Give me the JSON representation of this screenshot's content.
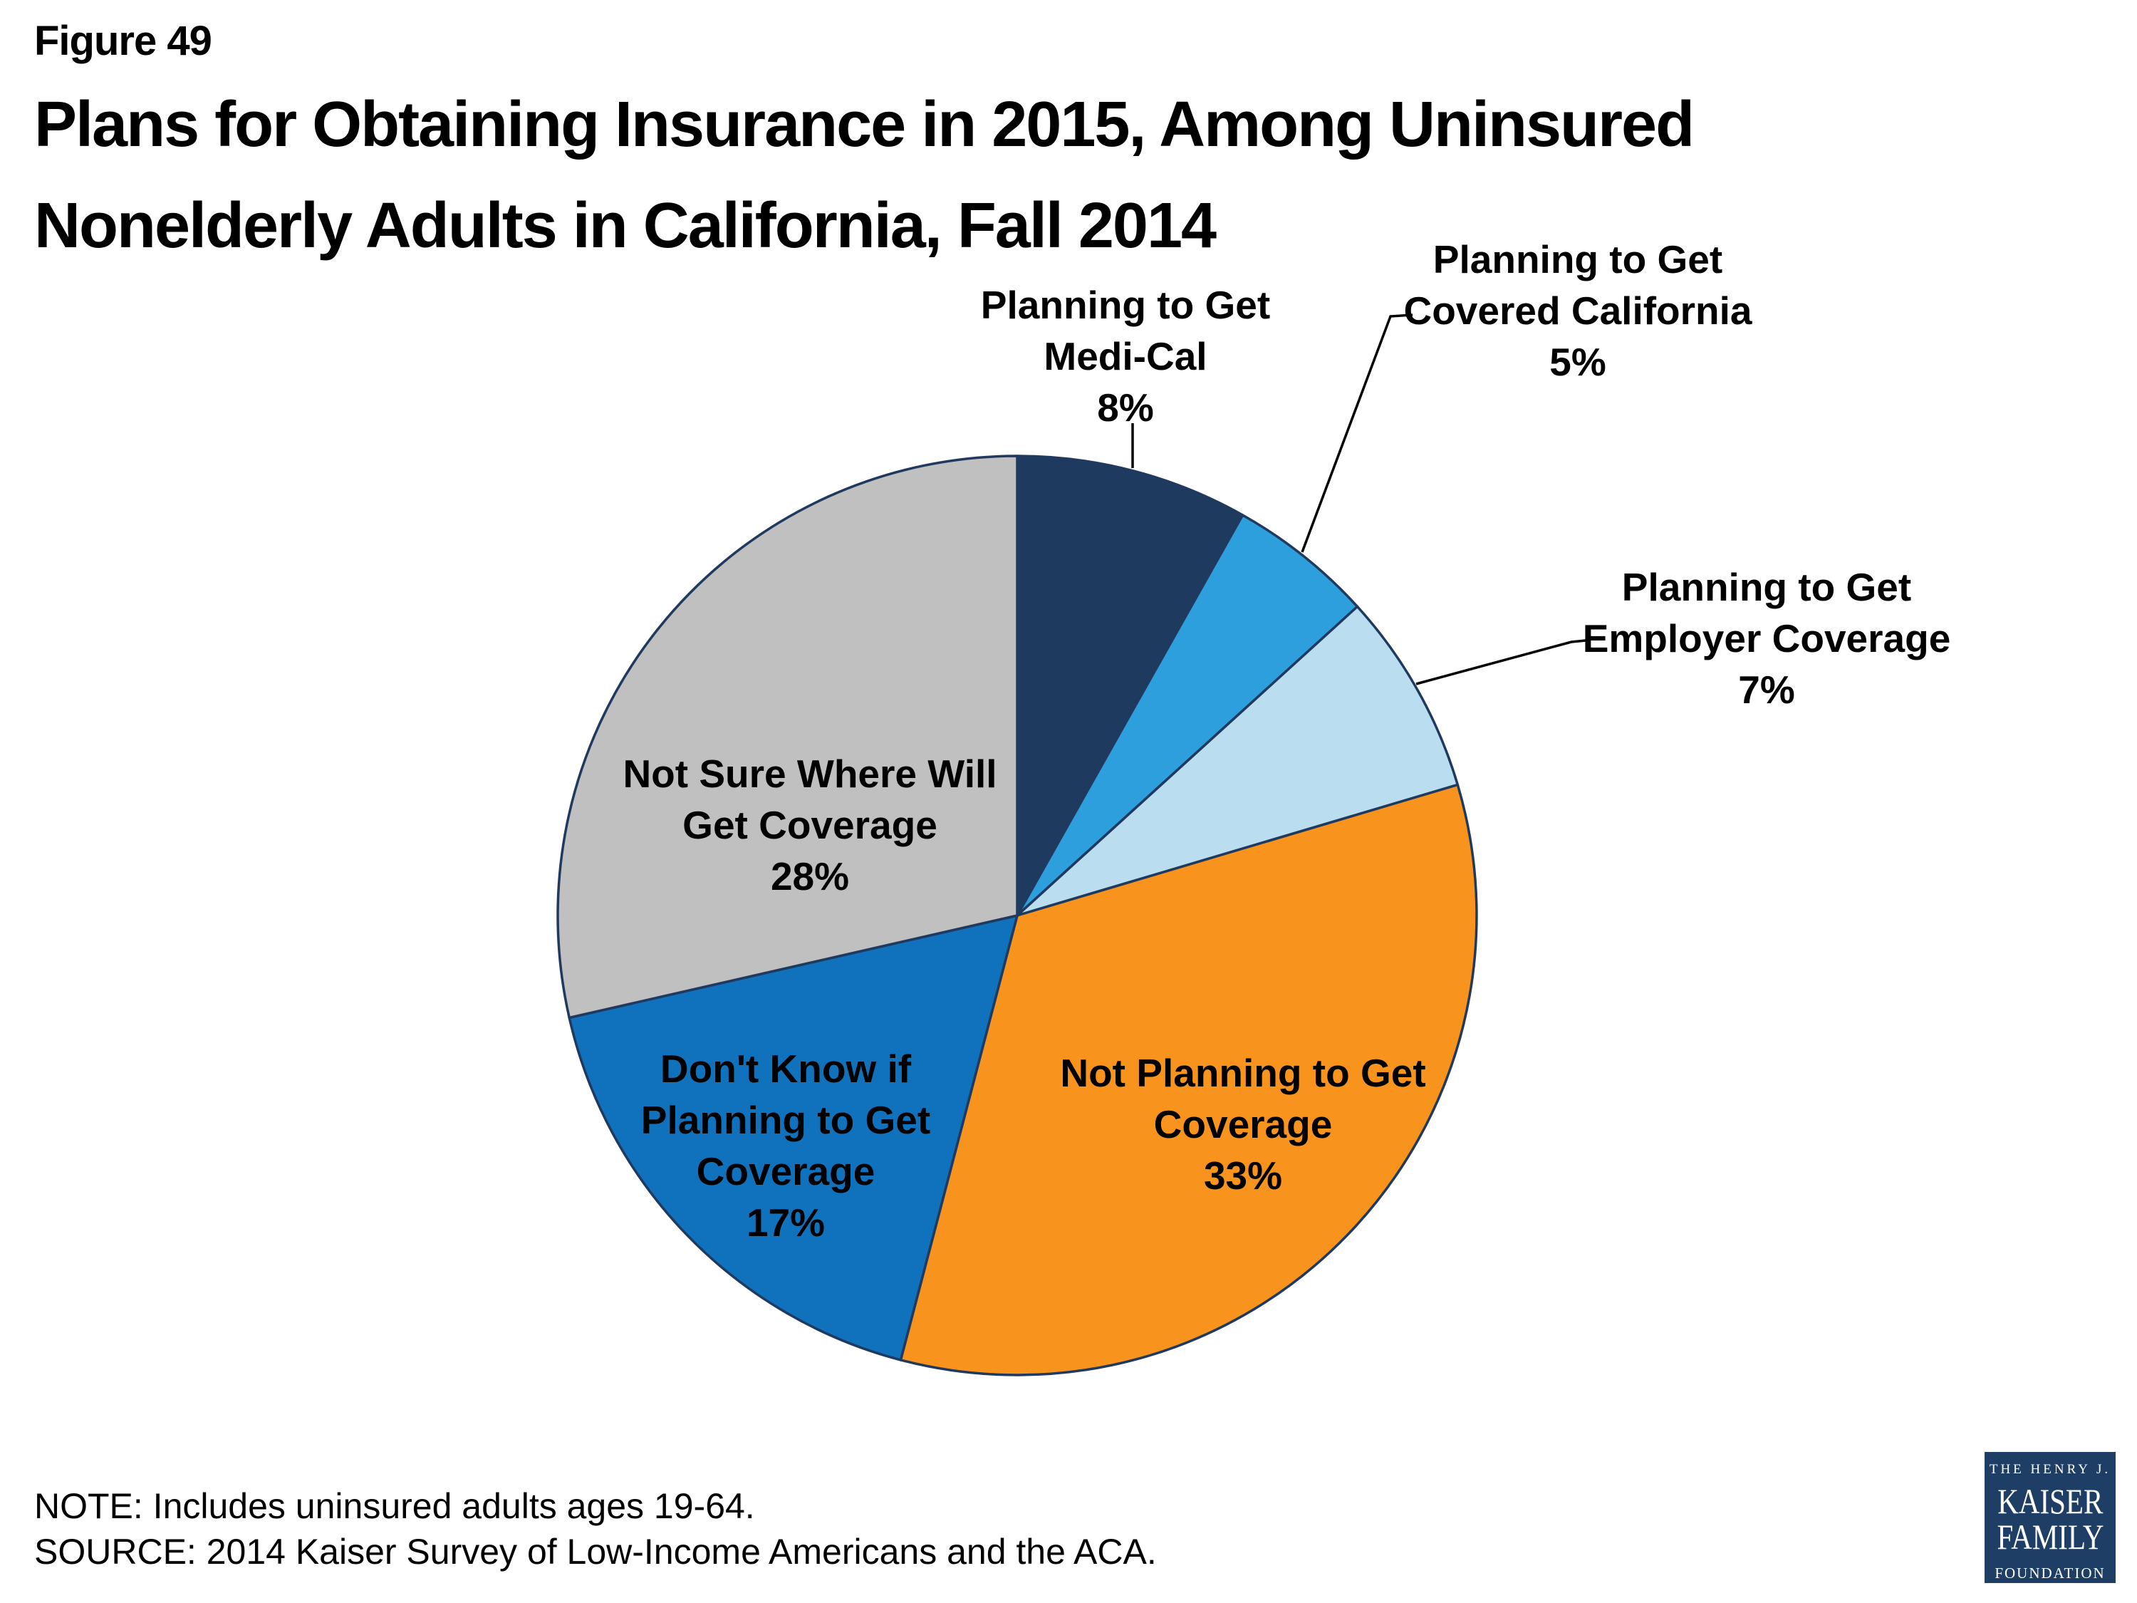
{
  "figure_label": "Figure 49",
  "title": "Plans for Obtaining Insurance in 2015, Among Uninsured\nNonelderly Adults in California, Fall 2014",
  "notes": {
    "note": "NOTE: Includes uninsured adults ages 19-64.",
    "source": "SOURCE: 2014 Kaiser Survey of Low-Income Americans and the ACA.",
    "combined": "NOTE: Includes uninsured adults ages 19-64.\nSOURCE: 2014 Kaiser Survey of Low-Income Americans and the ACA."
  },
  "logo": {
    "top": "THE HENRY J.",
    "name1": "KAISER",
    "name2": "FAMILY",
    "bottom": "FOUNDATION"
  },
  "chart_data": {
    "type": "pie",
    "title": "Plans for Obtaining Insurance in 2015, Among Uninsured Nonelderly Adults in California, Fall 2014",
    "value_units": "percent",
    "start_angle_deg": 0,
    "direction": "clockwise",
    "values_sum": 98,
    "slice_border_color": "#1F3A5E",
    "leader_line_color": "#000000",
    "slices": [
      {
        "id": "medi-cal",
        "label": "Planning to Get Medi-Cal",
        "value": 8,
        "color": "#1E3A5F",
        "label_placement": "outside",
        "display_label": "Planning to Get\nMedi-Cal\n8%"
      },
      {
        "id": "covered-california",
        "label": "Planning to Get Covered California",
        "value": 5,
        "color": "#2E9FDD",
        "label_placement": "outside",
        "display_label": "Planning to Get\nCovered California\n5%"
      },
      {
        "id": "employer-coverage",
        "label": "Planning to Get Employer Coverage",
        "value": 7,
        "color": "#BBDDF0",
        "label_placement": "outside",
        "display_label": "Planning to Get\nEmployer Coverage\n7%"
      },
      {
        "id": "not-planning",
        "label": "Not Planning to Get Coverage",
        "value": 33,
        "color": "#F8941D",
        "label_placement": "inside",
        "display_label": "Not Planning to Get\nCoverage\n33%"
      },
      {
        "id": "dont-know",
        "label": "Don't Know if Planning to Get Coverage",
        "value": 17,
        "color": "#1072BC",
        "label_placement": "inside",
        "display_label": "Don't Know if\nPlanning to Get\nCoverage\n17%"
      },
      {
        "id": "not-sure",
        "label": "Not Sure Where Will Get Coverage",
        "value": 28,
        "color": "#C0C0C0",
        "label_placement": "inside",
        "display_label": "Not Sure Where Will\nGet Coverage\n28%"
      }
    ]
  }
}
